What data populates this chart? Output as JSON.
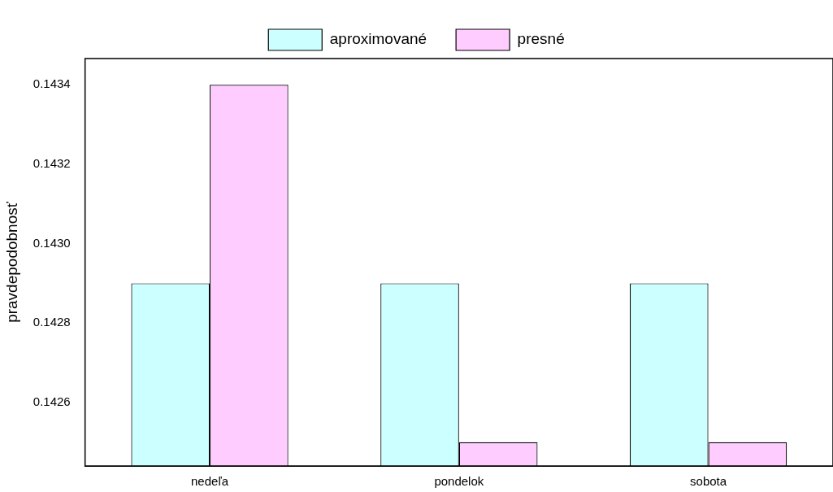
{
  "chart_data": {
    "type": "bar",
    "ylabel": "pravdepodobnosť",
    "categories": [
      "nedeľa",
      "pondelok",
      "sobota"
    ],
    "series": [
      {
        "name": "aproximované",
        "color": "#ccffff",
        "values": [
          0.1429,
          0.1429,
          0.1429
        ]
      },
      {
        "name": "presné",
        "color": "#ffccff",
        "values": [
          0.1434,
          0.1425,
          0.1425
        ]
      }
    ],
    "ylim": [
      0.14244,
      0.143466
    ],
    "yticks": [
      0.1426,
      0.1428,
      {
        "value": 0.143,
        "label": "0.1430"
      },
      0.1432,
      0.1434
    ],
    "grid": false,
    "legend": "top"
  }
}
